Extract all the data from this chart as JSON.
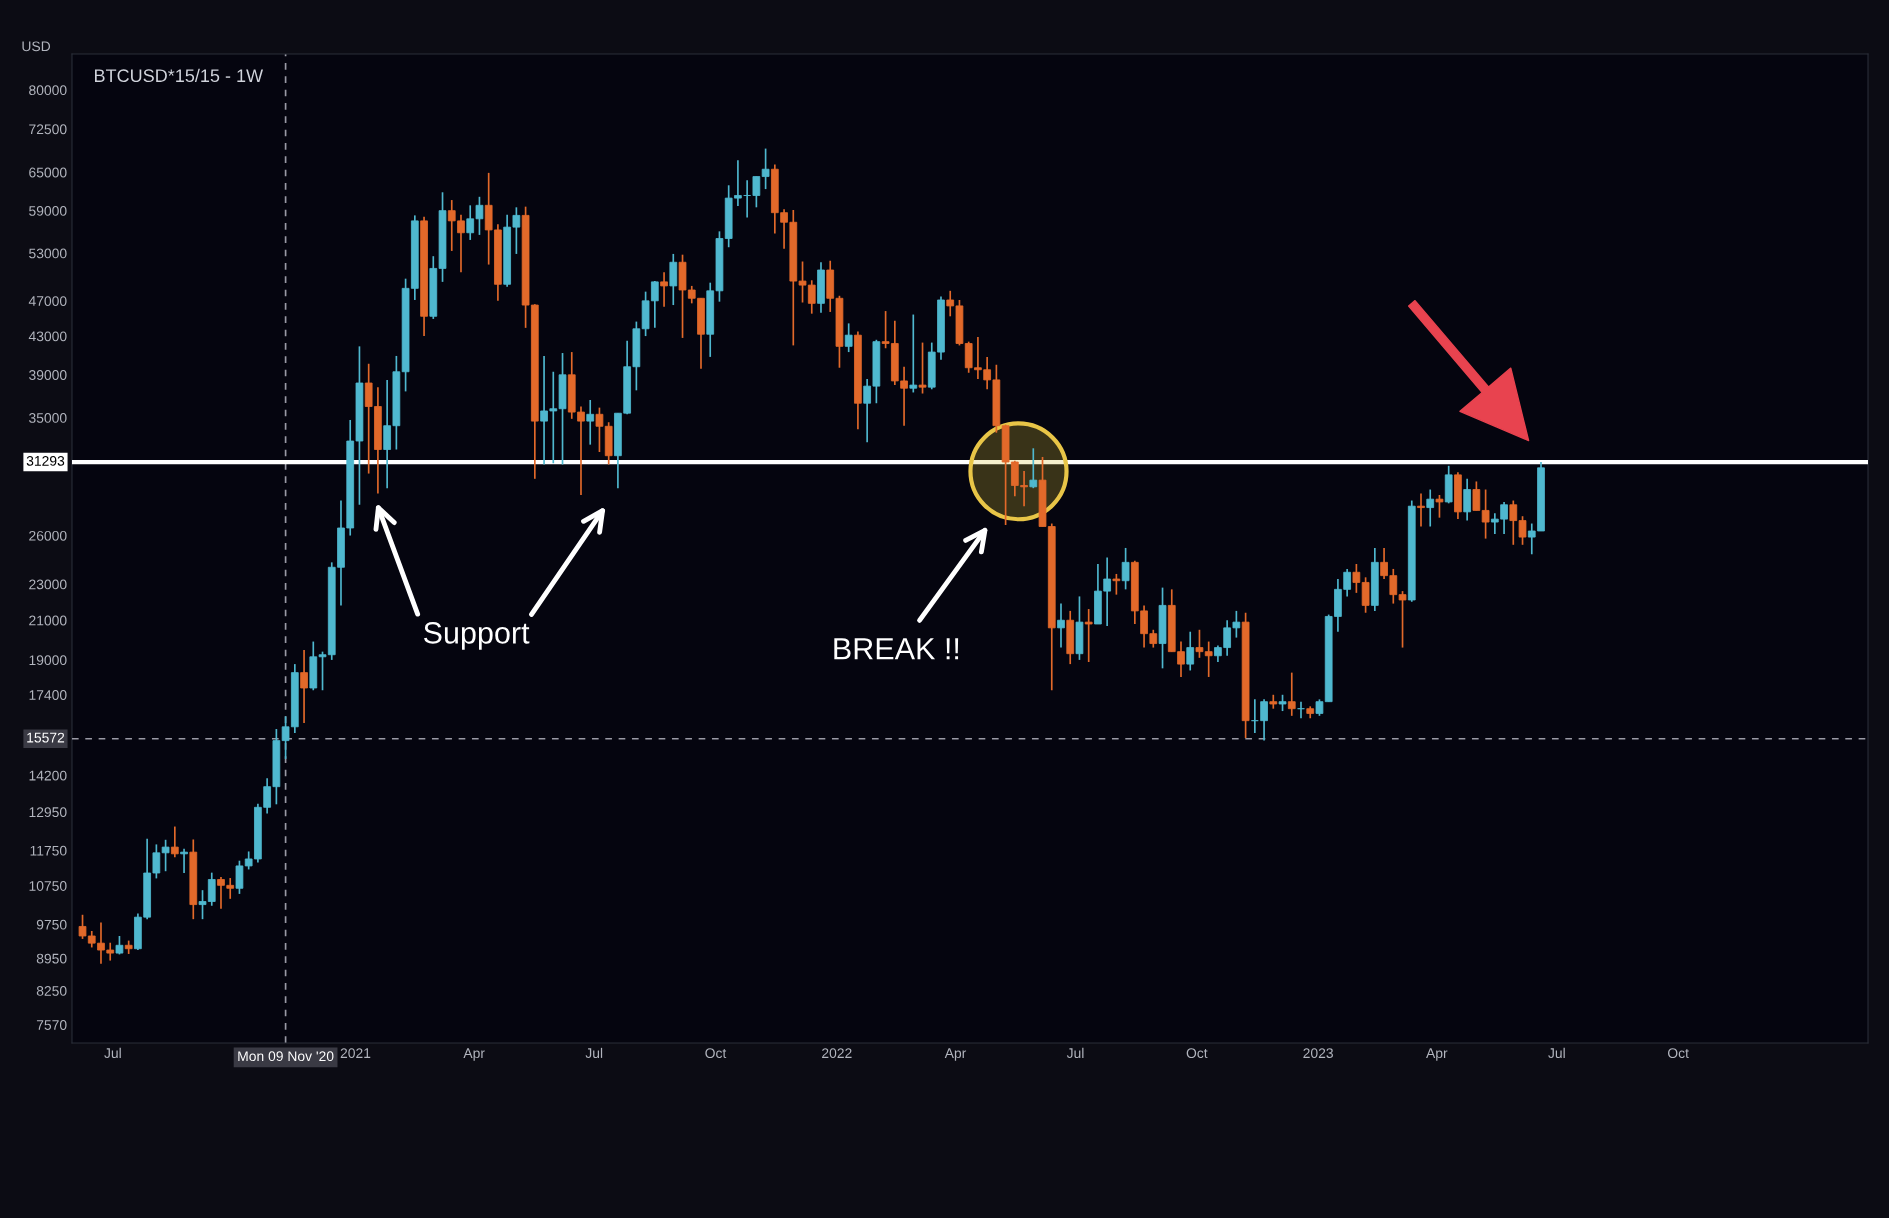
{
  "chart_data": {
    "type": "candlestick",
    "title": "BTCUSD*15/15 - 1W",
    "ylabel": "USD",
    "annotations": [
      "Support",
      "BREAK !!"
    ],
    "log": true,
    "grid": false,
    "ylim": [
      7230,
      87600
    ],
    "yticks": [
      7570,
      8250,
      8950,
      9750,
      10750,
      11750,
      12950,
      14200,
      17400,
      19000,
      21000,
      23000,
      26000,
      35000,
      39000,
      43000,
      47000,
      53000,
      59000,
      65000,
      72500,
      80000
    ],
    "xlim": [
      "2020-05-31",
      "2024-02-22"
    ],
    "xticks": [
      {
        "value": "2020-07-01",
        "label": "Jul"
      },
      {
        "value": "2021-01-01",
        "label": "2021"
      },
      {
        "value": "2021-04-01",
        "label": "Apr"
      },
      {
        "value": "2021-07-01",
        "label": "Jul"
      },
      {
        "value": "2021-10-01",
        "label": "Oct"
      },
      {
        "value": "2022-01-01",
        "label": "2022"
      },
      {
        "value": "2022-04-01",
        "label": "Apr"
      },
      {
        "value": "2022-07-01",
        "label": "Jul"
      },
      {
        "value": "2022-10-01",
        "label": "Oct"
      },
      {
        "value": "2023-01-01",
        "label": "2023"
      },
      {
        "value": "2023-04-01",
        "label": "Apr"
      },
      {
        "value": "2023-07-01",
        "label": "Jul"
      },
      {
        "value": "2023-10-01",
        "label": "Oct"
      }
    ],
    "ref_lines": [
      {
        "axis": "y",
        "value": 31293,
        "label": "31293",
        "color": "#ffffff",
        "line_style": "solid"
      },
      {
        "axis": "y",
        "value": 15572,
        "label": "15572",
        "color": "#9a9aa5",
        "line_style": "dashed"
      },
      {
        "axis": "x",
        "value": "2020-11-09",
        "label": "Mon 09 Nov '20",
        "color": "#9a9aa5",
        "line_style": "dashed"
      }
    ],
    "x": [
      "2020-06-08",
      "2020-06-15",
      "2020-06-22",
      "2020-06-29",
      "2020-07-06",
      "2020-07-13",
      "2020-07-20",
      "2020-07-27",
      "2020-08-03",
      "2020-08-10",
      "2020-08-17",
      "2020-08-24",
      "2020-08-31",
      "2020-09-07",
      "2020-09-14",
      "2020-09-21",
      "2020-09-28",
      "2020-10-05",
      "2020-10-12",
      "2020-10-19",
      "2020-10-26",
      "2020-11-02",
      "2020-11-09",
      "2020-11-16",
      "2020-11-23",
      "2020-11-30",
      "2020-12-07",
      "2020-12-14",
      "2020-12-21",
      "2020-12-28",
      "2021-01-04",
      "2021-01-11",
      "2021-01-18",
      "2021-01-25",
      "2021-02-01",
      "2021-02-08",
      "2021-02-15",
      "2021-02-22",
      "2021-03-01",
      "2021-03-08",
      "2021-03-15",
      "2021-03-22",
      "2021-03-29",
      "2021-04-05",
      "2021-04-12",
      "2021-04-19",
      "2021-04-26",
      "2021-05-03",
      "2021-05-10",
      "2021-05-17",
      "2021-05-24",
      "2021-05-31",
      "2021-06-07",
      "2021-06-14",
      "2021-06-21",
      "2021-06-28",
      "2021-07-05",
      "2021-07-12",
      "2021-07-19",
      "2021-07-26",
      "2021-08-02",
      "2021-08-09",
      "2021-08-16",
      "2021-08-23",
      "2021-08-30",
      "2021-09-06",
      "2021-09-13",
      "2021-09-20",
      "2021-09-27",
      "2021-10-04",
      "2021-10-11",
      "2021-10-18",
      "2021-10-25",
      "2021-11-01",
      "2021-11-08",
      "2021-11-15",
      "2021-11-22",
      "2021-11-29",
      "2021-12-06",
      "2021-12-13",
      "2021-12-20",
      "2021-12-27",
      "2022-01-03",
      "2022-01-10",
      "2022-01-17",
      "2022-01-24",
      "2022-01-31",
      "2022-02-07",
      "2022-02-14",
      "2022-02-21",
      "2022-02-28",
      "2022-03-07",
      "2022-03-14",
      "2022-03-21",
      "2022-03-28",
      "2022-04-04",
      "2022-04-11",
      "2022-04-18",
      "2022-04-25",
      "2022-05-02",
      "2022-05-09",
      "2022-05-16",
      "2022-05-23",
      "2022-05-30",
      "2022-06-06",
      "2022-06-13",
      "2022-06-20",
      "2022-06-27",
      "2022-07-04",
      "2022-07-11",
      "2022-07-18",
      "2022-07-25",
      "2022-08-01",
      "2022-08-08",
      "2022-08-15",
      "2022-08-22",
      "2022-08-29",
      "2022-09-05",
      "2022-09-12",
      "2022-09-19",
      "2022-09-26",
      "2022-10-03",
      "2022-10-10",
      "2022-10-17",
      "2022-10-24",
      "2022-10-31",
      "2022-11-07",
      "2022-11-14",
      "2022-11-21",
      "2022-11-28",
      "2022-12-05",
      "2022-12-12",
      "2022-12-19",
      "2022-12-26",
      "2023-01-02",
      "2023-01-09",
      "2023-01-16",
      "2023-01-23",
      "2023-01-30",
      "2023-02-06",
      "2023-02-13",
      "2023-02-20",
      "2023-02-27",
      "2023-03-06",
      "2023-03-13",
      "2023-03-20",
      "2023-03-27",
      "2023-04-03",
      "2023-04-10",
      "2023-04-17",
      "2023-04-24",
      "2023-05-01",
      "2023-05-08",
      "2023-05-15",
      "2023-05-22",
      "2023-05-29",
      "2023-06-05",
      "2023-06-12",
      "2023-06-19"
    ],
    "ohlc": [
      [
        9700,
        9990,
        9400,
        9470
      ],
      [
        9470,
        9590,
        9200,
        9300
      ],
      [
        9300,
        9800,
        8830,
        9140
      ],
      [
        9140,
        9310,
        8900,
        9070
      ],
      [
        9070,
        9470,
        9040,
        9250
      ],
      [
        9250,
        9360,
        9050,
        9170
      ],
      [
        9170,
        10020,
        9140,
        9930
      ],
      [
        9930,
        12100,
        9880,
        11100
      ],
      [
        11100,
        11930,
        10950,
        11680
      ],
      [
        11680,
        12070,
        11150,
        11850
      ],
      [
        11850,
        12480,
        11550,
        11650
      ],
      [
        11650,
        11800,
        11100,
        11700
      ],
      [
        11700,
        12080,
        9880,
        10250
      ],
      [
        10250,
        10630,
        9880,
        10330
      ],
      [
        10330,
        11110,
        10220,
        10920
      ],
      [
        10920,
        10990,
        10140,
        10760
      ],
      [
        10760,
        10960,
        10400,
        10680
      ],
      [
        10680,
        11450,
        10530,
        11300
      ],
      [
        11300,
        11720,
        11200,
        11500
      ],
      [
        11500,
        13220,
        11400,
        13100
      ],
      [
        13100,
        14100,
        12900,
        13800
      ],
      [
        13800,
        15960,
        13200,
        15500
      ],
      [
        15500,
        16480,
        14800,
        16050
      ],
      [
        16050,
        18800,
        15800,
        18400
      ],
      [
        18400,
        19480,
        16200,
        17700
      ],
      [
        17700,
        19900,
        17600,
        19150
      ],
      [
        19150,
        19400,
        17600,
        19250
      ],
      [
        19250,
        24300,
        19000,
        24000
      ],
      [
        24000,
        28400,
        21800,
        26500
      ],
      [
        26500,
        34800,
        26000,
        33000
      ],
      [
        33000,
        41900,
        28100,
        38200
      ],
      [
        38200,
        40100,
        30400,
        36000
      ],
      [
        36000,
        37800,
        28900,
        32300
      ],
      [
        32300,
        38500,
        29300,
        34300
      ],
      [
        34300,
        40900,
        32300,
        39300
      ],
      [
        39300,
        49700,
        37400,
        48500
      ],
      [
        48500,
        58300,
        47100,
        57500
      ],
      [
        57500,
        58100,
        43000,
        45200
      ],
      [
        45200,
        52600,
        44900,
        51000
      ],
      [
        51000,
        61800,
        49300,
        59000
      ],
      [
        59000,
        60600,
        53300,
        57500
      ],
      [
        57500,
        58400,
        50500,
        55800
      ],
      [
        55800,
        59800,
        54800,
        57800
      ],
      [
        57800,
        61100,
        55500,
        59800
      ],
      [
        59800,
        64900,
        51500,
        56200
      ],
      [
        56200,
        57000,
        47000,
        49000
      ],
      [
        49000,
        58400,
        48700,
        56600
      ],
      [
        56600,
        59500,
        52900,
        58300
      ],
      [
        58300,
        59600,
        43900,
        46500
      ],
      [
        46500,
        46600,
        30000,
        34700
      ],
      [
        34700,
        40900,
        31100,
        35600
      ],
      [
        35600,
        39300,
        31200,
        35800
      ],
      [
        35800,
        41200,
        31100,
        39000
      ],
      [
        39000,
        41300,
        34900,
        35500
      ],
      [
        35500,
        36000,
        28800,
        34700
      ],
      [
        34700,
        36600,
        32700,
        35300
      ],
      [
        35300,
        35900,
        32100,
        34250
      ],
      [
        34250,
        34600,
        31100,
        31800
      ],
      [
        31800,
        35400,
        29300,
        35400
      ],
      [
        35400,
        42500,
        35300,
        39800
      ],
      [
        39800,
        44600,
        37500,
        43800
      ],
      [
        43800,
        48100,
        43000,
        47000
      ],
      [
        47000,
        49400,
        43900,
        49300
      ],
      [
        49300,
        50500,
        46300,
        48800
      ],
      [
        48800,
        52900,
        46500,
        51800
      ],
      [
        51800,
        52800,
        42800,
        48300
      ],
      [
        48300,
        48800,
        46700,
        47300
      ],
      [
        47300,
        47300,
        39600,
        43200
      ],
      [
        43200,
        49200,
        40800,
        48200
      ],
      [
        48200,
        56000,
        46900,
        55000
      ],
      [
        55000,
        62900,
        53800,
        60900
      ],
      [
        60900,
        67000,
        59700,
        61300
      ],
      [
        61300,
        63700,
        58000,
        61300
      ],
      [
        61300,
        64300,
        59500,
        64300
      ],
      [
        64300,
        69000,
        62300,
        65500
      ],
      [
        65500,
        66300,
        55700,
        58700
      ],
      [
        58700,
        59200,
        53600,
        57300
      ],
      [
        57300,
        59100,
        42000,
        49400
      ],
      [
        49400,
        51900,
        46800,
        48900
      ],
      [
        48900,
        49500,
        45500,
        46700
      ],
      [
        46700,
        51800,
        45600,
        50800
      ],
      [
        50800,
        52000,
        45700,
        47300
      ],
      [
        47300,
        47600,
        39700,
        41900
      ],
      [
        41900,
        44400,
        41300,
        43100
      ],
      [
        43100,
        43500,
        34000,
        36300
      ],
      [
        36300,
        38600,
        32900,
        37900
      ],
      [
        37900,
        42600,
        36300,
        42400
      ],
      [
        42400,
        45800,
        41700,
        42200
      ],
      [
        42200,
        44700,
        38000,
        38400
      ],
      [
        38400,
        39800,
        34300,
        37700
      ],
      [
        37700,
        45400,
        37300,
        38000
      ],
      [
        38000,
        42300,
        37200,
        37800
      ],
      [
        37800,
        42300,
        37600,
        41300
      ],
      [
        41300,
        47500,
        40500,
        47100
      ],
      [
        47100,
        48200,
        45200,
        46400
      ],
      [
        46400,
        47100,
        42000,
        42200
      ],
      [
        42200,
        42400,
        39200,
        39700
      ],
      [
        39700,
        42900,
        38600,
        39500
      ],
      [
        39500,
        40800,
        37600,
        38500
      ],
      [
        38500,
        40000,
        33700,
        34300
      ],
      [
        34300,
        34400,
        26700,
        31300
      ],
      [
        31300,
        31400,
        28700,
        29500
      ],
      [
        29500,
        30600,
        28000,
        29400
      ],
      [
        29400,
        32400,
        29300,
        29900
      ],
      [
        29900,
        31700,
        26600,
        26600
      ],
      [
        26600,
        26800,
        17600,
        20600
      ],
      [
        20600,
        21900,
        19600,
        21000
      ],
      [
        21000,
        21500,
        18800,
        19300
      ],
      [
        19300,
        22300,
        19000,
        20900
      ],
      [
        20900,
        21600,
        18900,
        20800
      ],
      [
        20800,
        24200,
        20800,
        22600
      ],
      [
        22600,
        24600,
        20700,
        23300
      ],
      [
        23300,
        23600,
        22400,
        23200
      ],
      [
        23200,
        25200,
        22700,
        24300
      ],
      [
        24300,
        24400,
        20800,
        21500
      ],
      [
        21500,
        21800,
        19600,
        20300
      ],
      [
        20300,
        20500,
        19600,
        19800
      ],
      [
        19800,
        22800,
        18600,
        21800
      ],
      [
        21800,
        22700,
        19400,
        19400
      ],
      [
        19400,
        19900,
        18200,
        18800
      ],
      [
        18800,
        20400,
        18500,
        19600
      ],
      [
        19600,
        20500,
        19100,
        19400
      ],
      [
        19400,
        19900,
        18200,
        19200
      ],
      [
        19200,
        19700,
        18900,
        19600
      ],
      [
        19600,
        21000,
        19200,
        20600
      ],
      [
        20600,
        21500,
        20100,
        20900
      ],
      [
        20900,
        21400,
        15600,
        16300
      ],
      [
        16300,
        17200,
        15800,
        16300
      ],
      [
        16300,
        17200,
        15500,
        17100
      ],
      [
        17100,
        17400,
        16800,
        17000
      ],
      [
        17000,
        17400,
        16700,
        17100
      ],
      [
        17100,
        18400,
        16500,
        16800
      ],
      [
        16800,
        17100,
        16400,
        16800
      ],
      [
        16800,
        16900,
        16400,
        16600
      ],
      [
        16600,
        17200,
        16500,
        17100
      ],
      [
        17100,
        21300,
        17100,
        21200
      ],
      [
        21200,
        23300,
        20400,
        22700
      ],
      [
        22700,
        23900,
        22300,
        23700
      ],
      [
        23700,
        24200,
        22500,
        23100
      ],
      [
        23100,
        23400,
        21400,
        21800
      ],
      [
        21800,
        25200,
        21500,
        24300
      ],
      [
        24300,
        25200,
        23300,
        23500
      ],
      [
        23500,
        23900,
        21900,
        22400
      ],
      [
        22400,
        22600,
        19600,
        22100
      ],
      [
        22100,
        28400,
        22000,
        28000
      ],
      [
        28000,
        28900,
        26600,
        27900
      ],
      [
        27900,
        29200,
        26600,
        28500
      ],
      [
        28500,
        28800,
        27200,
        28300
      ],
      [
        28300,
        31000,
        28200,
        30300
      ],
      [
        30300,
        30500,
        27100,
        27600
      ],
      [
        27600,
        30000,
        27000,
        29200
      ],
      [
        29200,
        29800,
        27700,
        27700
      ],
      [
        27700,
        29200,
        25800,
        26900
      ],
      [
        26900,
        27500,
        26100,
        27100
      ],
      [
        27100,
        28300,
        26100,
        28100
      ],
      [
        28100,
        28400,
        25400,
        27000
      ],
      [
        27000,
        27300,
        25400,
        25900
      ],
      [
        25900,
        26800,
        24800,
        26300
      ],
      [
        26300,
        31300,
        26300,
        30844
      ]
    ]
  }
}
